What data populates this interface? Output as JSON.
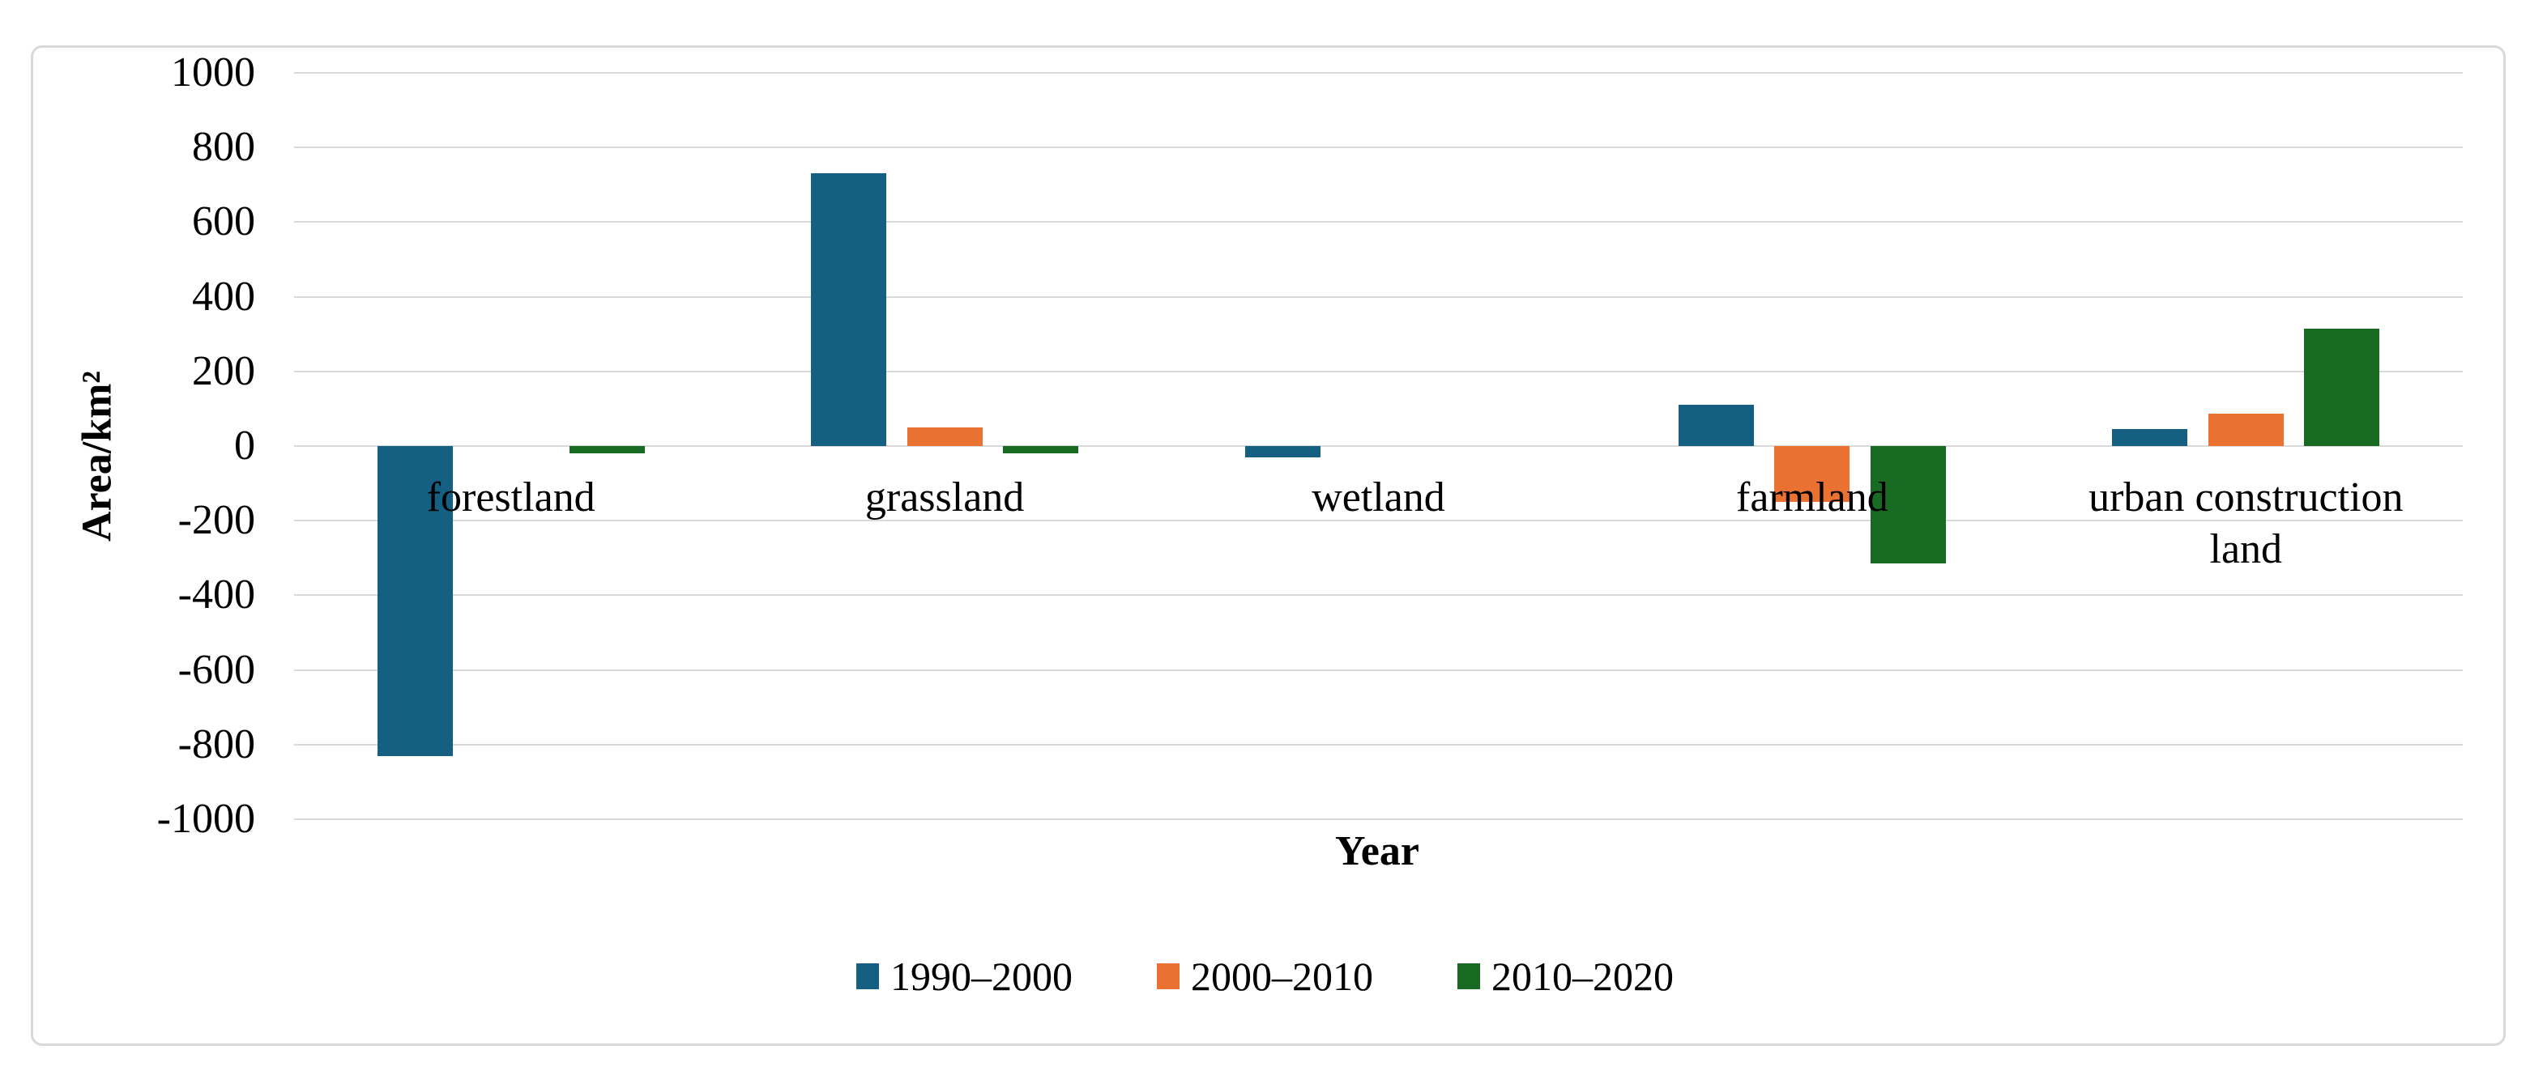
{
  "figure": {
    "background": "#ffffff",
    "border_color": "#D9D9D9",
    "gridline_color": "#D9D9D9"
  },
  "chart_data": {
    "type": "bar",
    "title": "",
    "xlabel": "Year",
    "ylabel": "Area/km²",
    "categories": [
      "forestland",
      "grassland",
      "wetland",
      "farmland",
      "urban construction land"
    ],
    "series": [
      {
        "name": "1990–2000",
        "color": "#156082",
        "values": [
          -830,
          730,
          -30,
          110,
          45
        ]
      },
      {
        "name": "2000–2010",
        "color": "#E97132",
        "values": [
          0,
          50,
          0,
          -150,
          87
        ]
      },
      {
        "name": "2010–2020",
        "color": "#196B24",
        "values": [
          -20,
          -20,
          0,
          -315,
          315
        ]
      }
    ],
    "ylim": [
      -1000,
      1000
    ],
    "yticks": [
      1000,
      800,
      600,
      400,
      200,
      0,
      -200,
      -400,
      -600,
      -800,
      -1000
    ],
    "grid": true,
    "legend_position": "bottom"
  }
}
